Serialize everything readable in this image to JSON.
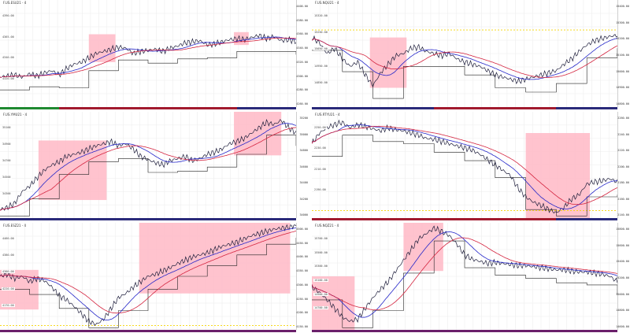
{
  "accent": {
    "grid": "#ededed",
    "price": "#1c1c3a",
    "ma_fast": "#2426c9",
    "ma_slow": "#d4243f",
    "highlight": "#ffb8c6",
    "step": "#222222",
    "yellow": "#f6d400"
  },
  "panels": [
    {
      "id": "p1",
      "title": "F.US.ESU21 - 4",
      "price_tag": "",
      "strip_colors": [
        "#1f8a30",
        "#a11a2e",
        "#a11a2e",
        "#a11a2e",
        "#2a2a7a"
      ],
      "ticks": [
        "4400.00",
        "4380.00",
        "4360.00",
        "4340.00",
        "4320.00",
        "4300.00",
        "4280.00",
        "4260.00"
      ],
      "levels": [
        "4390.00",
        "4365.00",
        "4340.00",
        "4320.00"
      ],
      "series": [
        0.72,
        0.71,
        0.7,
        0.72,
        0.69,
        0.71,
        0.68,
        0.66,
        0.7,
        0.64,
        0.6,
        0.58,
        0.54,
        0.5,
        0.48,
        0.46,
        0.44,
        0.45,
        0.5,
        0.48,
        0.47,
        0.46,
        0.48,
        0.45,
        0.43,
        0.4,
        0.39,
        0.38,
        0.42,
        0.41,
        0.39,
        0.37,
        0.36,
        0.37,
        0.35,
        0.33,
        0.36,
        0.34,
        0.38,
        0.37,
        0.39
      ],
      "highlights": [
        [
          0.3,
          0.39,
          0.32,
          0.58
        ],
        [
          0.79,
          0.84,
          0.3,
          0.42
        ]
      ],
      "yellow_rows": []
    },
    {
      "id": "p2",
      "title": "F.US.NQU21 - 4",
      "price_tag": "",
      "strip_colors": [
        "#2a2a7a",
        "#2a2a7a",
        "#a11a2e",
        "#a11a2e",
        "#2a2a7a"
      ],
      "ticks": [
        "15400.00",
        "15300.00",
        "15200.00",
        "15100.00",
        "15000.00",
        "14900.00",
        "14800.00"
      ],
      "levels": [
        "15320.00",
        "15250.00",
        "15050.00",
        "14950.00",
        "14850.00"
      ],
      "series": [
        0.35,
        0.4,
        0.5,
        0.45,
        0.55,
        0.62,
        0.58,
        0.7,
        0.8,
        0.68,
        0.6,
        0.52,
        0.5,
        0.45,
        0.44,
        0.48,
        0.5,
        0.52,
        0.5,
        0.55,
        0.58,
        0.6,
        0.62,
        0.66,
        0.7,
        0.72,
        0.74,
        0.76,
        0.74,
        0.72,
        0.7,
        0.68,
        0.66,
        0.6,
        0.55,
        0.48,
        0.42,
        0.38,
        0.36,
        0.34,
        0.33
      ],
      "highlights": [
        [
          0.19,
          0.31,
          0.35,
          0.82
        ]
      ],
      "yellow_rows": [
        0.28
      ]
    },
    {
      "id": "p3",
      "title": "F.US.YMU21 - 4",
      "price_tag": "",
      "strip_colors": [
        "#2a2a7a",
        "#2a2a7a",
        "#2a2a7a",
        "#2a2a7a",
        "#2a2a7a"
      ],
      "ticks": [
        "35200",
        "35000",
        "34800",
        "34600",
        "34400",
        "34200",
        "34000"
      ],
      "levels": [
        "35100",
        "34900",
        "34700",
        "34500",
        "34300"
      ],
      "series": [
        0.92,
        0.9,
        0.86,
        0.75,
        0.7,
        0.62,
        0.55,
        0.5,
        0.47,
        0.42,
        0.4,
        0.38,
        0.35,
        0.32,
        0.3,
        0.28,
        0.32,
        0.3,
        0.35,
        0.42,
        0.45,
        0.48,
        0.5,
        0.46,
        0.44,
        0.42,
        0.46,
        0.44,
        0.4,
        0.38,
        0.35,
        0.3,
        0.28,
        0.25,
        0.2,
        0.15,
        0.1,
        0.12,
        0.08,
        0.15,
        0.2
      ],
      "highlights": [
        [
          0.13,
          0.36,
          0.27,
          0.83
        ],
        [
          0.79,
          0.95,
          0.0,
          0.41
        ]
      ],
      "yellow_rows": []
    },
    {
      "id": "p4",
      "title": "F.US.RTYU21 - 4",
      "price_tag": "",
      "strip_colors": [
        "#a11a2e",
        "#a11a2e",
        "#a11a2e",
        "#a11a2e",
        "#2a2a7a"
      ],
      "ticks": [
        "2260.00",
        "2240.00",
        "2220.00",
        "2200.00",
        "2180.00",
        "2160.00",
        "2140.00"
      ],
      "levels": [
        "2250.00",
        "2230.00",
        "2210.00",
        "2190.00"
      ],
      "series": [
        0.3,
        0.2,
        0.15,
        0.12,
        0.1,
        0.15,
        0.12,
        0.14,
        0.16,
        0.18,
        0.15,
        0.17,
        0.18,
        0.2,
        0.22,
        0.25,
        0.26,
        0.28,
        0.3,
        0.32,
        0.34,
        0.36,
        0.4,
        0.45,
        0.5,
        0.55,
        0.6,
        0.72,
        0.8,
        0.85,
        0.88,
        0.92,
        0.95,
        0.9,
        0.82,
        0.78,
        0.68,
        0.66,
        0.65,
        0.63,
        0.66
      ],
      "highlights": [
        [
          0.7,
          0.91,
          0.2,
          1.0
        ]
      ],
      "yellow_rows": [
        0.93
      ]
    },
    {
      "id": "p5",
      "title": "F.US.ESZ21 - 4",
      "price_tag": "",
      "strip_colors": [
        "#6a1f6a",
        "#6a1f6a",
        "#6a1f6a",
        "#6a1f6a",
        "#6a1f6a"
      ],
      "ticks": [
        "4500.00",
        "4450.00",
        "4400.00",
        "4350.00",
        "4300.00",
        "4250.00",
        "4200.00",
        "4150.00"
      ],
      "levels": [
        "4460.00",
        "4380.00",
        "4300.00",
        "4220.00",
        "4170.00"
      ],
      "series": [
        0.5,
        0.48,
        0.52,
        0.5,
        0.55,
        0.52,
        0.54,
        0.6,
        0.68,
        0.72,
        0.78,
        0.85,
        0.92,
        0.95,
        0.9,
        0.8,
        0.7,
        0.66,
        0.6,
        0.55,
        0.5,
        0.48,
        0.45,
        0.42,
        0.38,
        0.35,
        0.32,
        0.3,
        0.28,
        0.25,
        0.22,
        0.2,
        0.18,
        0.15,
        0.12,
        0.1,
        0.08,
        0.06,
        0.05,
        0.04,
        0.02
      ],
      "highlights": [
        [
          0.0,
          0.13,
          0.44,
          0.81
        ],
        [
          0.47,
          0.98,
          0.0,
          0.66
        ]
      ],
      "yellow_rows": [
        0.96
      ]
    },
    {
      "id": "p6",
      "title": "F.US.NQZ21 - 4",
      "price_tag": "",
      "strip_colors": [
        "#6a1f6a",
        "#6a1f6a",
        "#6a1f6a",
        "#6a1f6a",
        "#6a1f6a"
      ],
      "ticks": [
        "15800.00",
        "15600.00",
        "15400.00",
        "15200.00",
        "15000.00",
        "14800.00",
        "14600.00"
      ],
      "levels": [
        "15700.00",
        "15500.00",
        "15300.00",
        "15100.00",
        "14900.00",
        "14700.00"
      ],
      "series": [
        0.6,
        0.65,
        0.72,
        0.8,
        0.88,
        0.92,
        0.9,
        0.8,
        0.7,
        0.62,
        0.55,
        0.45,
        0.35,
        0.25,
        0.15,
        0.1,
        0.05,
        0.08,
        0.12,
        0.2,
        0.3,
        0.34,
        0.36,
        0.38,
        0.37,
        0.38,
        0.39,
        0.4,
        0.4,
        0.41,
        0.42,
        0.43,
        0.44,
        0.44,
        0.45,
        0.46,
        0.46,
        0.47,
        0.48,
        0.5,
        0.55
      ],
      "highlights": [
        [
          0.0,
          0.14,
          0.5,
          1.0
        ],
        [
          0.3,
          0.43,
          0.0,
          0.45
        ]
      ],
      "yellow_rows": []
    }
  ]
}
